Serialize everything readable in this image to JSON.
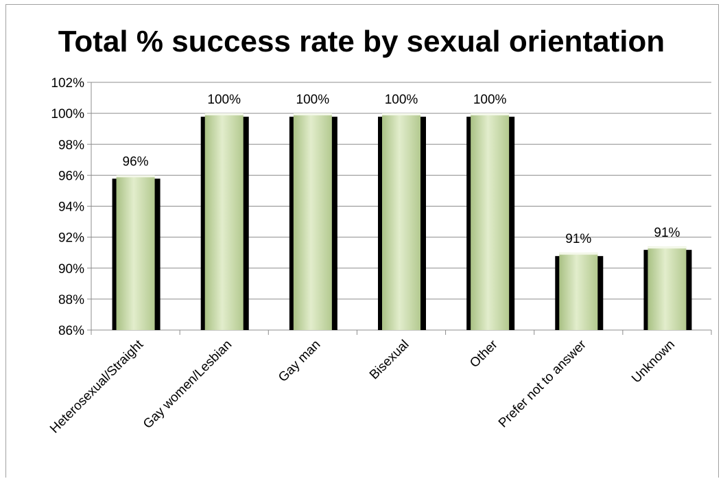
{
  "chart_data": {
    "type": "bar",
    "title": "Total % success rate by sexual orientation",
    "xlabel": "",
    "ylabel": "",
    "categories": [
      "Heterosexual/Straight",
      "Gay women/Lesbian",
      "Gay man",
      "Bisexual",
      "Other",
      "Prefer not to answer",
      "Unknown"
    ],
    "values": [
      96,
      100,
      100,
      100,
      100,
      91,
      91.4
    ],
    "data_labels": [
      "96%",
      "100%",
      "100%",
      "100%",
      "100%",
      "91%",
      "91%"
    ],
    "ylim": [
      86,
      102
    ],
    "yticks": [
      86,
      88,
      90,
      92,
      94,
      96,
      98,
      100,
      102
    ],
    "ytick_labels": [
      "86%",
      "88%",
      "90%",
      "92%",
      "94%",
      "96%",
      "98%",
      "100%",
      "102%"
    ],
    "grid": true,
    "legend": "none",
    "bar_color": "#c9dcaa",
    "shadow_color": "#000000"
  }
}
